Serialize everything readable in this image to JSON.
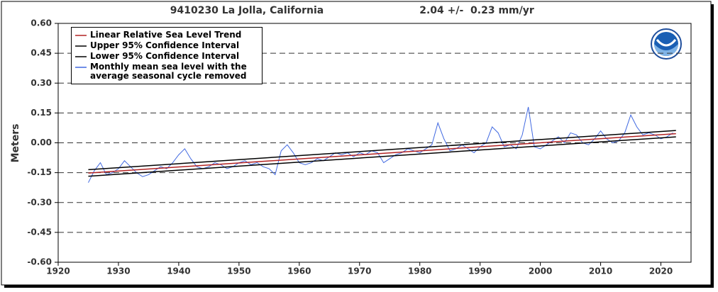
{
  "chart_data": {
    "type": "line",
    "title": "9410230 La Jolla, California",
    "subtitle": "2.04 +/-  0.23 mm/yr",
    "y_label": "Meters",
    "xlim": [
      1920,
      2025
    ],
    "xticks": [
      1920,
      1930,
      1940,
      1950,
      1960,
      1970,
      1980,
      1990,
      2000,
      2010,
      2020
    ],
    "ylim": [
      -0.6,
      0.6
    ],
    "yticks": [
      {
        "value": -0.6,
        "label": "-0.60"
      },
      {
        "value": -0.45,
        "label": "-0.45"
      },
      {
        "value": -0.3,
        "label": "-0.30"
      },
      {
        "value": -0.15,
        "label": "-0.15"
      },
      {
        "value": 0,
        "label": "0.00"
      },
      {
        "value": 0.15,
        "label": "0.15"
      },
      {
        "value": 0.3,
        "label": "0.30"
      },
      {
        "value": 0.45,
        "label": "0.45"
      },
      {
        "value": 0.6,
        "label": "0.60"
      }
    ],
    "grid": true,
    "legend": "upper left",
    "series": [
      {
        "name": "Linear Relative Sea Level Trend",
        "color": "#b22222",
        "x": [
          1925,
          2022.5
        ],
        "values": [
          -0.152,
          0.046
        ]
      },
      {
        "name": "Upper 95% Confidence Interval",
        "color": "#000000",
        "x": [
          1925,
          2022.5
        ],
        "values": [
          -0.135,
          0.062
        ]
      },
      {
        "name": "Lower 95% Confidence Interval",
        "color": "#000000",
        "x": [
          1925,
          2022.5
        ],
        "values": [
          -0.168,
          0.03
        ]
      },
      {
        "name": "Monthly mean sea level with the average seasonal cycle removed",
        "color": "#4169e1",
        "x": [
          1925,
          1926,
          1927,
          1928,
          1929,
          1930,
          1931,
          1932,
          1933,
          1934,
          1935,
          1936,
          1937,
          1938,
          1939,
          1940,
          1941,
          1942,
          1943,
          1944,
          1945,
          1946,
          1947,
          1948,
          1949,
          1950,
          1951,
          1952,
          1953,
          1954,
          1955,
          1956,
          1957,
          1958,
          1959,
          1960,
          1961,
          1962,
          1963,
          1964,
          1965,
          1966,
          1967,
          1968,
          1969,
          1970,
          1971,
          1972,
          1973,
          1974,
          1975,
          1976,
          1977,
          1978,
          1979,
          1980,
          1981,
          1982,
          1983,
          1984,
          1985,
          1986,
          1987,
          1988,
          1989,
          1990,
          1991,
          1992,
          1993,
          1994,
          1995,
          1996,
          1997,
          1998,
          1999,
          2000,
          2001,
          2002,
          2003,
          2004,
          2005,
          2006,
          2007,
          2008,
          2009,
          2010,
          2011,
          2012,
          2013,
          2014,
          2015,
          2016,
          2017,
          2018,
          2019,
          2020,
          2021,
          2022
        ],
        "values": [
          -0.2,
          -0.14,
          -0.1,
          -0.16,
          -0.15,
          -0.13,
          -0.09,
          -0.12,
          -0.15,
          -0.17,
          -0.16,
          -0.14,
          -0.12,
          -0.13,
          -0.1,
          -0.06,
          -0.03,
          -0.08,
          -0.12,
          -0.13,
          -0.12,
          -0.1,
          -0.11,
          -0.13,
          -0.12,
          -0.1,
          -0.09,
          -0.11,
          -0.1,
          -0.12,
          -0.13,
          -0.16,
          -0.04,
          -0.01,
          -0.05,
          -0.1,
          -0.11,
          -0.1,
          -0.08,
          -0.09,
          -0.07,
          -0.05,
          -0.06,
          -0.05,
          -0.07,
          -0.05,
          -0.06,
          -0.04,
          -0.05,
          -0.1,
          -0.08,
          -0.06,
          -0.05,
          -0.03,
          -0.04,
          -0.05,
          -0.03,
          -0.01,
          0.1,
          0.02,
          -0.04,
          -0.03,
          -0.01,
          -0.03,
          -0.05,
          -0.02,
          0,
          0.08,
          0.05,
          -0.02,
          -0.01,
          -0.03,
          0.04,
          0.18,
          -0.02,
          -0.03,
          -0.01,
          0.01,
          0.03,
          0,
          0.05,
          0.04,
          0,
          -0.01,
          0.02,
          0.06,
          0.02,
          0,
          0.01,
          0.05,
          0.14,
          0.08,
          0.04,
          0.05,
          0.04,
          0.02,
          0.03,
          0.05
        ]
      }
    ]
  }
}
